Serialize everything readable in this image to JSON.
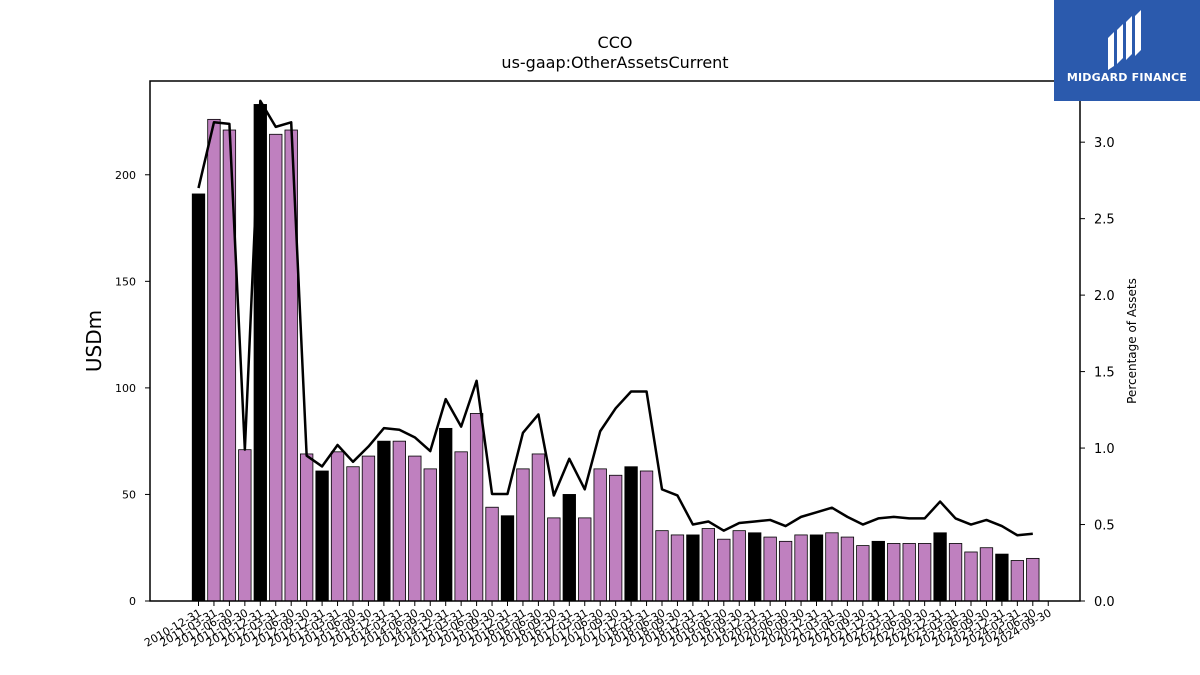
{
  "logo": {
    "text": "MIDGARD FINANCE"
  },
  "chart_data": {
    "type": "bar",
    "title": "CCO",
    "subtitle": "us-gaap:OtherAssetsCurrent",
    "ylabel": "USDm",
    "ylabel_right": "Percentage of Assets",
    "ylim": [
      0,
      244
    ],
    "ylim_right": [
      0,
      3.4
    ],
    "yticks": [
      0,
      50,
      100,
      150,
      200
    ],
    "yticks_right": [
      0.0,
      0.5,
      1.0,
      1.5,
      2.0,
      2.5,
      3.0
    ],
    "grid": false,
    "colors": {
      "year_end_bar": "#000000",
      "quarter_bar": "#bf80bf",
      "line": "#000000"
    },
    "categories": [
      "2010-12-31",
      "2011-03-31",
      "2011-06-30",
      "2011-09-30",
      "2011-12-31",
      "2012-03-31",
      "2012-06-30",
      "2012-09-30",
      "2012-12-31",
      "2013-03-31",
      "2013-06-30",
      "2013-09-30",
      "2013-12-31",
      "2014-03-31",
      "2014-06-30",
      "2014-09-30",
      "2014-12-31",
      "2015-03-31",
      "2015-06-30",
      "2015-09-30",
      "2015-12-31",
      "2016-03-31",
      "2016-06-30",
      "2016-09-30",
      "2016-12-31",
      "2017-03-31",
      "2017-06-30",
      "2017-09-30",
      "2017-12-31",
      "2018-03-31",
      "2018-06-30",
      "2018-09-30",
      "2018-12-31",
      "2019-03-31",
      "2019-06-30",
      "2019-09-30",
      "2019-12-31",
      "2020-03-31",
      "2020-06-30",
      "2020-09-30",
      "2020-12-31",
      "2021-03-31",
      "2021-06-30",
      "2021-09-30",
      "2021-12-31",
      "2022-03-31",
      "2022-06-30",
      "2022-09-30",
      "2022-12-31",
      "2023-03-31",
      "2023-06-30",
      "2023-09-30",
      "2023-12-31",
      "2024-03-31",
      "2024-06-30",
      "2024-09-30"
    ],
    "series": [
      {
        "type": "bar",
        "values": [
          191,
          226,
          221,
          71,
          233,
          219,
          221,
          69,
          61,
          70,
          63,
          68,
          75,
          75,
          68,
          62,
          81,
          70,
          88,
          44,
          40,
          62,
          69,
          39,
          50,
          39,
          62,
          59,
          63,
          61,
          33,
          31,
          31,
          34,
          29,
          33,
          32,
          30,
          28,
          31,
          31,
          32,
          30,
          26,
          28,
          27,
          27,
          27,
          32,
          27,
          23,
          25,
          22,
          19,
          20,
          null
        ]
      },
      {
        "type": "line",
        "values": [
          2.7,
          3.13,
          3.12,
          0.99,
          3.27,
          3.1,
          3.13,
          0.95,
          0.88,
          1.02,
          0.91,
          1.01,
          1.13,
          1.12,
          1.07,
          0.98,
          1.32,
          1.14,
          1.44,
          0.7,
          0.7,
          1.1,
          1.22,
          0.69,
          0.93,
          0.73,
          1.11,
          1.26,
          1.37,
          1.37,
          0.73,
          0.69,
          0.5,
          0.52,
          0.46,
          0.51,
          0.52,
          0.53,
          0.49,
          0.55,
          0.58,
          0.61,
          0.55,
          0.5,
          0.54,
          0.55,
          0.54,
          0.54,
          0.65,
          0.54,
          0.5,
          0.53,
          0.49,
          0.43,
          0.44,
          null
        ]
      }
    ]
  }
}
